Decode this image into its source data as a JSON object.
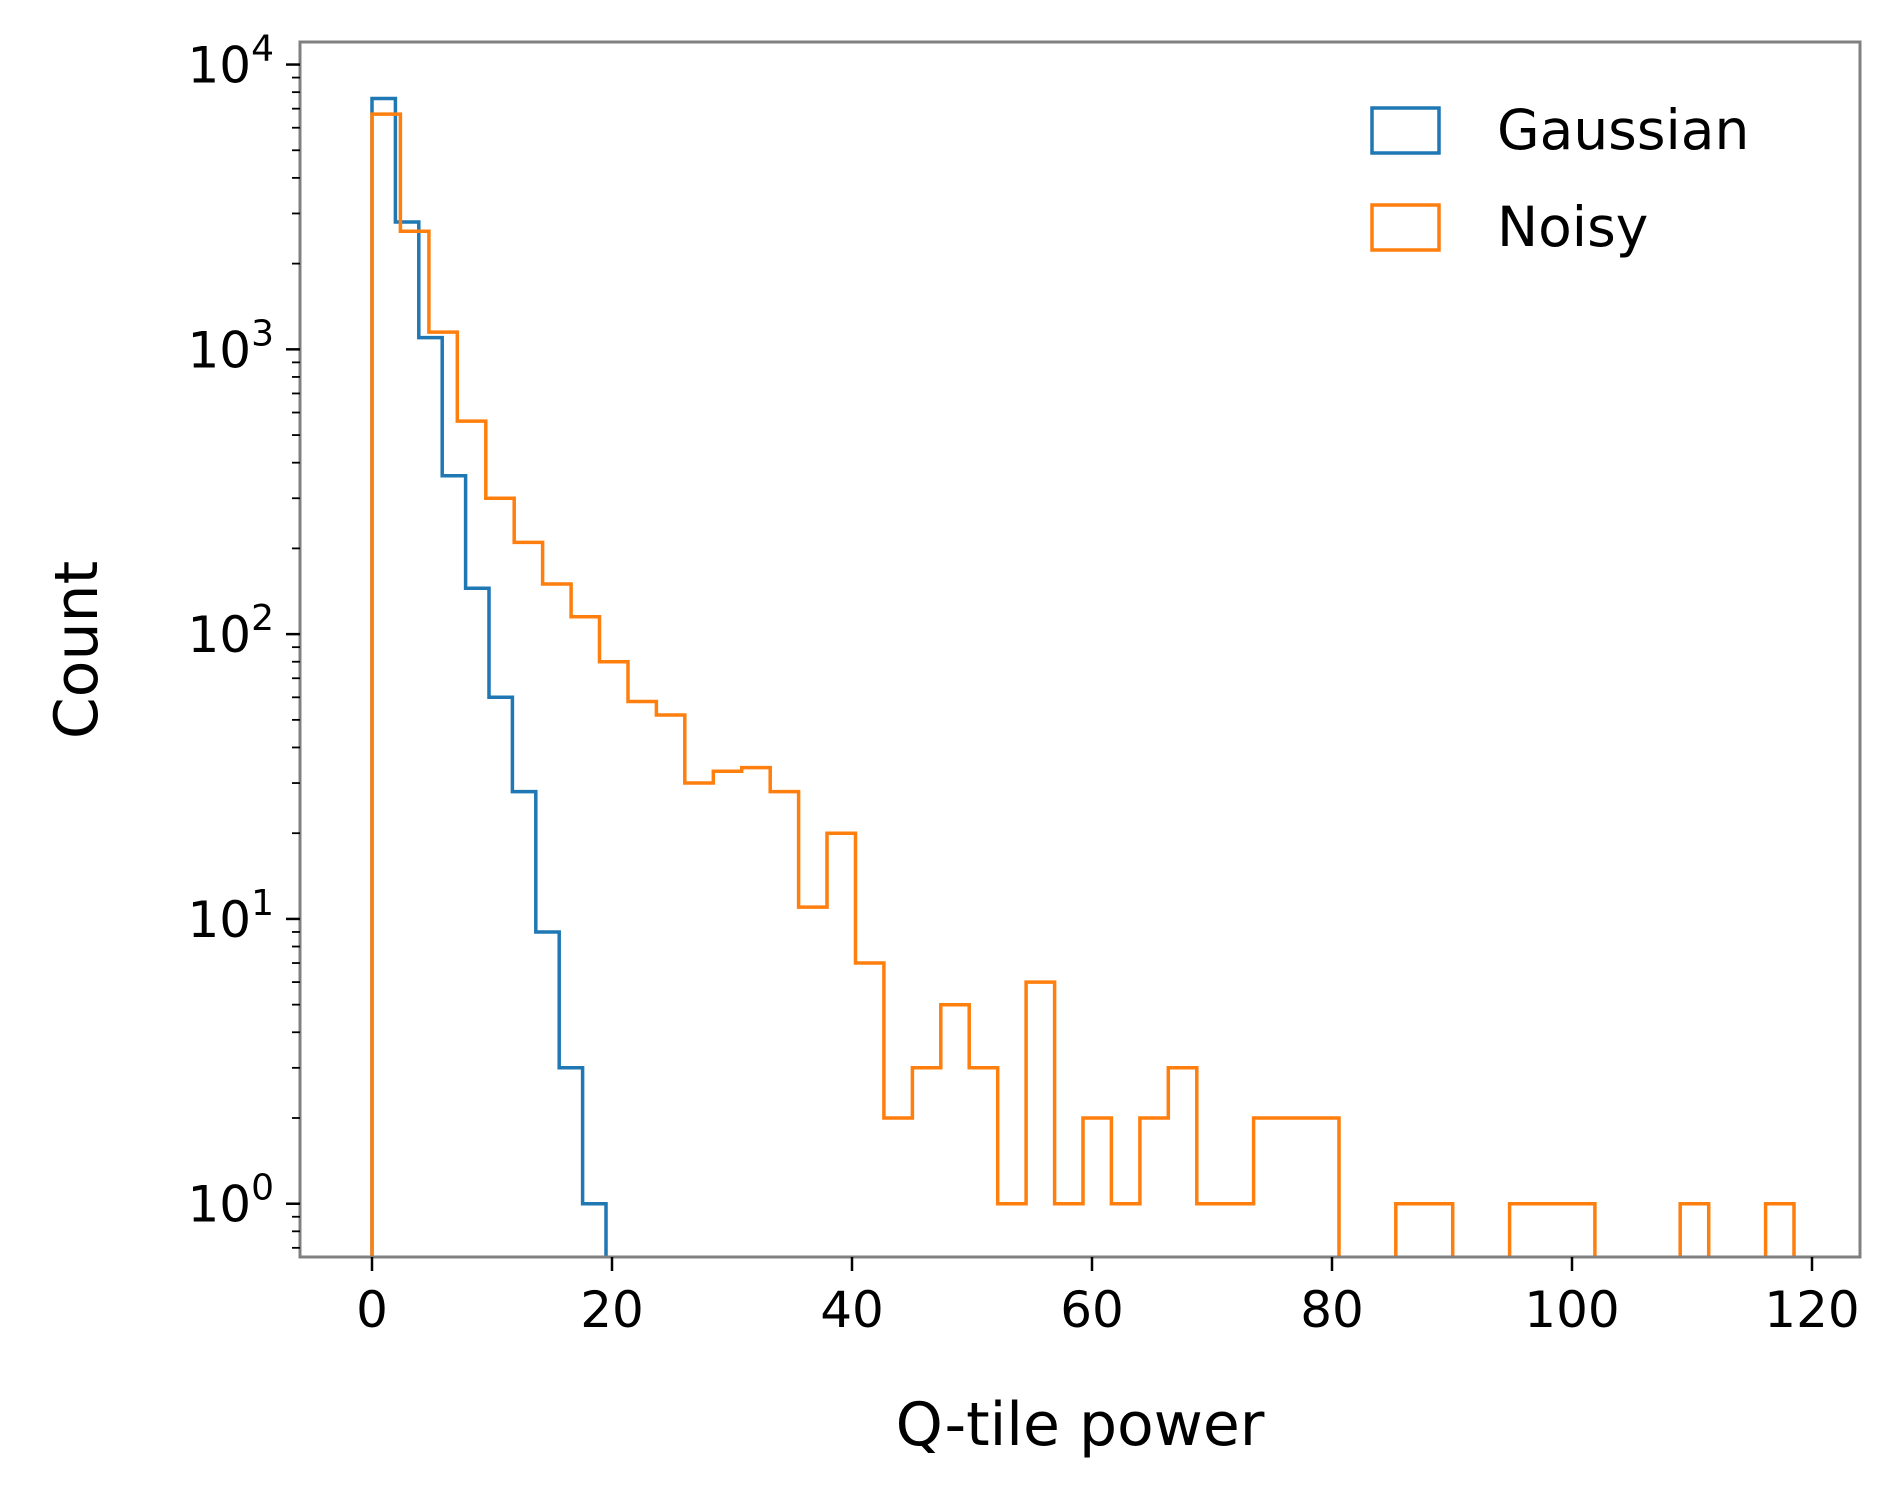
{
  "chart_data": {
    "type": "histogram",
    "title": "",
    "xlabel": "Q-tile power",
    "ylabel": "Count",
    "xlim": [
      -6,
      124
    ],
    "ylim": [
      0.65,
      12000
    ],
    "yscale": "log",
    "x_ticks": [
      0,
      20,
      40,
      60,
      80,
      100,
      120
    ],
    "x_tick_labels": [
      "0",
      "20",
      "40",
      "60",
      "80",
      "100",
      "120"
    ],
    "y_ticks": [
      {
        "value": 1,
        "base": "10",
        "exp": "0"
      },
      {
        "value": 10,
        "base": "10",
        "exp": "1"
      },
      {
        "value": 100,
        "base": "10",
        "exp": "2"
      },
      {
        "value": 1000,
        "base": "10",
        "exp": "3"
      },
      {
        "value": 10000,
        "base": "10",
        "exp": "4"
      }
    ],
    "grid": false,
    "legend_position": "top-right",
    "series": [
      {
        "name": "Gaussian",
        "color": "#1f77b4",
        "edges": [
          0,
          1.95,
          3.9,
          5.85,
          7.8,
          9.75,
          11.7,
          13.65,
          15.6,
          17.55,
          19.5
        ],
        "counts": [
          7600,
          2800,
          1100,
          360,
          145,
          60,
          28,
          9,
          3,
          1
        ]
      },
      {
        "name": "Noisy",
        "color": "#ff7f0e",
        "edges": [
          0,
          2.37,
          4.74,
          7.11,
          9.48,
          11.85,
          14.22,
          16.59,
          18.96,
          21.33,
          23.7,
          26.07,
          28.44,
          30.81,
          33.18,
          35.55,
          37.92,
          40.29,
          42.66,
          45.03,
          47.4,
          49.77,
          52.14,
          54.51,
          56.88,
          59.25,
          61.62,
          63.99,
          66.36,
          68.73,
          71.1,
          73.47,
          75.84,
          78.21,
          80.58,
          82.95,
          85.32,
          87.69,
          90.06,
          92.43,
          94.8,
          97.17,
          99.54,
          101.91,
          104.28,
          106.65,
          109.02,
          111.39,
          113.76,
          116.13,
          118.5
        ],
        "counts": [
          6700,
          2600,
          1150,
          560,
          300,
          210,
          150,
          115,
          80,
          58,
          52,
          30,
          33,
          34,
          28,
          11,
          20,
          7,
          2,
          3,
          5,
          3,
          1,
          6,
          1,
          2,
          1,
          2,
          3,
          1,
          1,
          2,
          2,
          2,
          0,
          0,
          1,
          1,
          0,
          0,
          1,
          1,
          1,
          0,
          0,
          0,
          1,
          0,
          0,
          1
        ]
      }
    ]
  }
}
